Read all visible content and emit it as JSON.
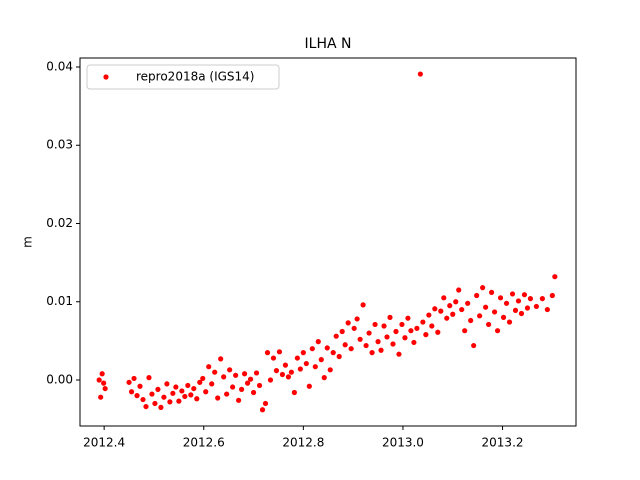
{
  "chart_data": {
    "type": "scatter",
    "title": "ILHA N",
    "ylabel": "m",
    "legend": "upper left",
    "xlim": [
      2012.3515,
      2013.3475
    ],
    "ylim": [
      -0.00588,
      0.04115
    ],
    "xticks": [
      2012.4,
      2012.6,
      2012.8,
      {
        "value": 2013.0,
        "label": "2013.0"
      },
      2013.2
    ],
    "yticks": [
      {
        "value": 0,
        "label": "0.00"
      },
      0.01,
      0.02,
      0.03,
      0.04
    ],
    "series": [
      {
        "name": "repro2018a (IGS14)",
        "color": "#ff0000",
        "x": [
          2012.39,
          2012.393,
          2012.396,
          2012.399,
          2012.402,
          2012.45,
          2012.455,
          2012.46,
          2012.466,
          2012.472,
          2012.478,
          2012.484,
          2012.49,
          2012.496,
          2012.502,
          2012.508,
          2012.514,
          2012.52,
          2012.526,
          2012.532,
          2012.538,
          2012.544,
          2012.55,
          2012.556,
          2012.562,
          2012.568,
          2012.574,
          2012.58,
          2012.586,
          2012.592,
          2012.598,
          2012.604,
          2012.61,
          2012.616,
          2012.622,
          2012.628,
          2012.634,
          2012.64,
          2012.646,
          2012.652,
          2012.658,
          2012.664,
          2012.67,
          2012.676,
          2012.682,
          2012.688,
          2012.694,
          2012.7,
          2012.706,
          2012.712,
          2012.718,
          2012.724,
          2012.728,
          2012.734,
          2012.74,
          2012.746,
          2012.752,
          2012.758,
          2012.764,
          2012.77,
          2012.776,
          2012.782,
          2012.788,
          2012.794,
          2012.8,
          2012.806,
          2012.812,
          2012.818,
          2012.824,
          2012.83,
          2012.836,
          2012.842,
          2012.848,
          2012.854,
          2012.86,
          2012.866,
          2012.872,
          2012.878,
          2012.884,
          2012.89,
          2012.896,
          2012.902,
          2012.908,
          2012.914,
          2012.92,
          2012.926,
          2012.932,
          2012.938,
          2012.944,
          2012.95,
          2012.956,
          2012.962,
          2012.968,
          2012.974,
          2012.98,
          2012.986,
          2012.992,
          2012.998,
          2013.004,
          2013.01,
          2013.016,
          2013.022,
          2013.028,
          2013.035,
          2013.04,
          2013.046,
          2013.052,
          2013.058,
          2013.064,
          2013.07,
          2013.076,
          2013.082,
          2013.088,
          2013.094,
          2013.1,
          2013.106,
          2013.112,
          2013.118,
          2013.124,
          2013.13,
          2013.136,
          2013.142,
          2013.148,
          2013.154,
          2013.16,
          2013.166,
          2013.172,
          2013.178,
          2013.184,
          2013.19,
          2013.196,
          2013.202,
          2013.208,
          2013.214,
          2013.22,
          2013.226,
          2013.232,
          2013.238,
          2013.244,
          2013.25,
          2013.256,
          2013.268,
          2013.28,
          2013.29,
          2013.3,
          2013.305
        ],
        "values": [
          0.0,
          -0.0022,
          0.0008,
          -0.0004,
          -0.0011,
          -0.0003,
          -0.0015,
          0.0002,
          -0.002,
          -0.0008,
          -0.0025,
          -0.0034,
          0.0003,
          -0.0018,
          -0.003,
          -0.0012,
          -0.0035,
          -0.0022,
          -0.0005,
          -0.0028,
          -0.0017,
          -0.0009,
          -0.0027,
          -0.0014,
          -0.0021,
          -0.0007,
          -0.0019,
          -0.0011,
          -0.0024,
          -0.0003,
          0.0002,
          -0.0015,
          0.0017,
          -0.0005,
          0.001,
          -0.0023,
          0.0027,
          0.0004,
          -0.0018,
          0.0013,
          -0.0009,
          0.0006,
          -0.0026,
          -0.0012,
          0.0008,
          -0.0004,
          0.0001,
          -0.0016,
          0.0009,
          -0.0007,
          -0.0038,
          -0.003,
          0.0035,
          0.0,
          0.0028,
          0.0012,
          0.0036,
          0.0007,
          0.0019,
          0.0004,
          0.001,
          -0.0016,
          0.0028,
          0.0014,
          0.0035,
          0.0021,
          -0.0008,
          0.004,
          0.0017,
          0.0049,
          0.0026,
          0.0003,
          0.0041,
          0.0013,
          0.0035,
          0.0056,
          0.003,
          0.0062,
          0.0045,
          0.0073,
          0.004,
          0.0066,
          0.0078,
          0.0052,
          0.0096,
          0.0044,
          0.006,
          0.0035,
          0.0071,
          0.0049,
          0.0038,
          0.0069,
          0.0055,
          0.008,
          0.0046,
          0.0062,
          0.0033,
          0.0071,
          0.0054,
          0.0079,
          0.0063,
          0.0048,
          0.0066,
          0.0391,
          0.0074,
          0.0058,
          0.0083,
          0.0069,
          0.0091,
          0.0061,
          0.0088,
          0.0105,
          0.0079,
          0.0095,
          0.0084,
          0.01,
          0.0115,
          0.009,
          0.0063,
          0.0098,
          0.0076,
          0.0044,
          0.0108,
          0.0082,
          0.0118,
          0.0093,
          0.0071,
          0.0112,
          0.0087,
          0.0063,
          0.0105,
          0.008,
          0.0098,
          0.0074,
          0.011,
          0.0089,
          0.0101,
          0.0085,
          0.0109,
          0.0092,
          0.0104,
          0.0094,
          0.0104,
          0.009,
          0.0108,
          0.0132
        ]
      }
    ]
  }
}
